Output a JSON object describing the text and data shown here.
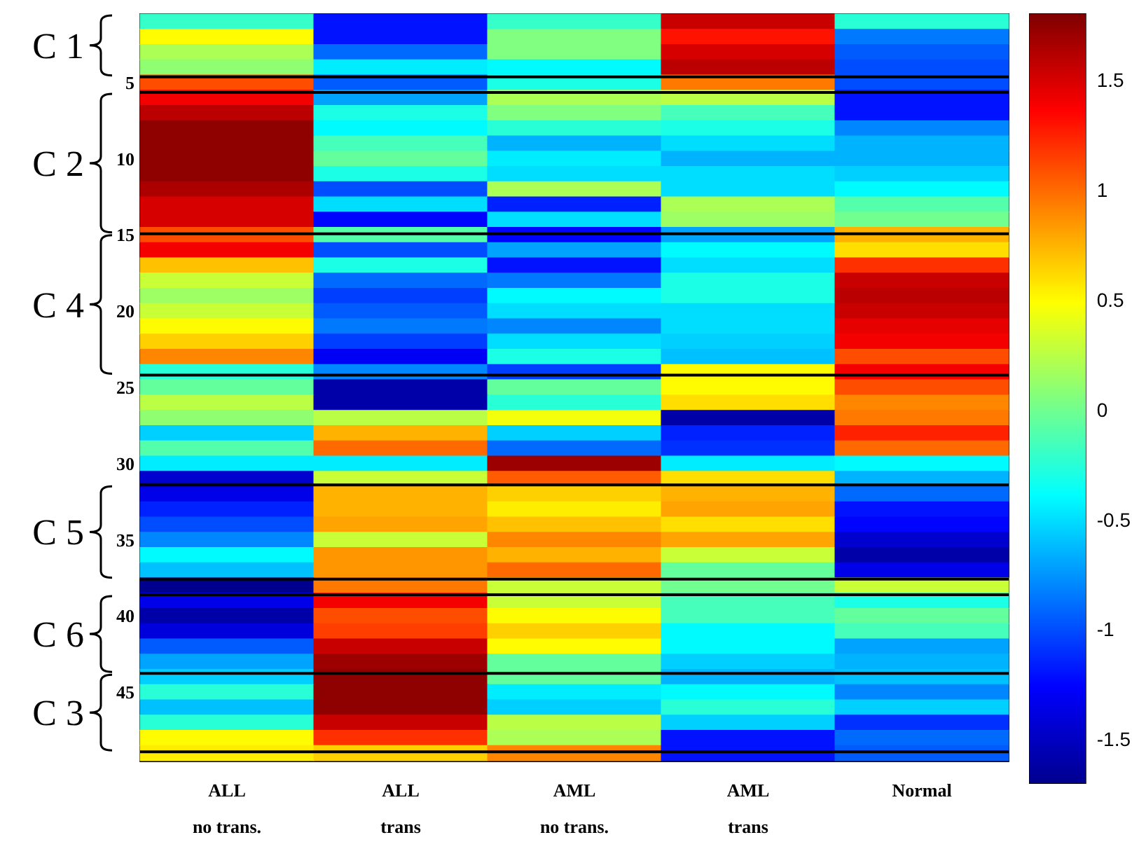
{
  "chart_data": {
    "type": "heatmap",
    "categories": [
      "ALL\nno trans.",
      "ALL\ntrans",
      "AML\nno trans.",
      "AML\ntrans",
      "Normal"
    ],
    "y_categories": [
      null,
      null,
      null,
      null,
      "5",
      null,
      null,
      null,
      null,
      "10",
      null,
      null,
      null,
      null,
      "15",
      null,
      null,
      null,
      null,
      "20",
      null,
      null,
      null,
      null,
      "25",
      null,
      null,
      null,
      null,
      "30",
      null,
      null,
      null,
      null,
      "35",
      null,
      null,
      null,
      null,
      "40",
      null,
      null,
      null,
      null,
      "45",
      null,
      null,
      null,
      null
    ],
    "cells": [
      [
        -0.2,
        -1.2,
        -0.2,
        1.55,
        -0.25
      ],
      [
        0.5,
        -1.2,
        0.05,
        1.3,
        -0.85
      ],
      [
        0.2,
        -0.9,
        0.05,
        1.5,
        -0.95
      ],
      [
        0.1,
        -0.45,
        -0.4,
        1.6,
        -1.0
      ],
      [
        1.1,
        -0.95,
        -0.3,
        0.95,
        -1.0
      ],
      [
        1.4,
        -0.7,
        0.2,
        0.25,
        -1.2
      ],
      [
        1.6,
        -0.3,
        0.05,
        -0.15,
        -1.2
      ],
      [
        1.75,
        -0.4,
        -0.25,
        -0.3,
        -0.8
      ],
      [
        1.75,
        -0.15,
        -0.65,
        -0.5,
        -0.65
      ],
      [
        1.75,
        -0.05,
        -0.45,
        -0.65,
        -0.65
      ],
      [
        1.75,
        -0.3,
        -0.5,
        -0.5,
        -0.55
      ],
      [
        1.65,
        -1.0,
        0.2,
        -0.5,
        -0.4
      ],
      [
        1.5,
        -0.5,
        -1.15,
        0.2,
        -0.1
      ],
      [
        1.5,
        -1.25,
        -0.5,
        0.15,
        0.0
      ],
      [
        1.1,
        -0.1,
        -1.25,
        -0.7,
        0.75
      ],
      [
        1.4,
        -1.0,
        -0.7,
        -0.4,
        0.6
      ],
      [
        0.7,
        -0.3,
        -1.2,
        -0.5,
        1.2
      ],
      [
        0.3,
        -0.9,
        -0.85,
        -0.3,
        1.55
      ],
      [
        0.15,
        -1.05,
        -0.4,
        -0.3,
        1.6
      ],
      [
        0.3,
        -0.95,
        -0.5,
        -0.5,
        1.55
      ],
      [
        0.5,
        -0.85,
        -0.8,
        -0.5,
        1.45
      ],
      [
        0.65,
        -1.05,
        -0.5,
        -0.55,
        1.4
      ],
      [
        0.9,
        -1.3,
        -0.3,
        -0.6,
        1.1
      ],
      [
        -0.25,
        -0.8,
        -1.05,
        0.5,
        1.4
      ],
      [
        -0.05,
        -1.6,
        -0.05,
        0.5,
        1.1
      ],
      [
        0.25,
        -1.6,
        -0.25,
        0.6,
        0.9
      ],
      [
        0.1,
        0.25,
        0.45,
        -1.6,
        0.95
      ],
      [
        -0.55,
        0.75,
        -0.55,
        -1.15,
        1.25
      ],
      [
        -0.1,
        1.0,
        -0.9,
        -1.1,
        1.0
      ],
      [
        -0.45,
        -0.45,
        1.7,
        -0.45,
        -0.4
      ],
      [
        -1.45,
        0.3,
        1.05,
        0.6,
        -0.65
      ],
      [
        -1.35,
        0.75,
        0.65,
        0.75,
        -0.9
      ],
      [
        -1.15,
        0.75,
        0.55,
        0.8,
        -1.2
      ],
      [
        -1.0,
        0.8,
        0.7,
        0.6,
        -1.25
      ],
      [
        -0.8,
        0.3,
        0.9,
        0.8,
        -1.45
      ],
      [
        -0.4,
        0.85,
        0.75,
        0.3,
        -1.6
      ],
      [
        -0.6,
        0.85,
        1.0,
        -0.05,
        -1.35
      ],
      [
        -1.7,
        0.95,
        0.3,
        0.0,
        0.3
      ],
      [
        -1.35,
        1.4,
        0.3,
        -0.15,
        -0.3
      ],
      [
        -1.6,
        1.1,
        0.5,
        -0.15,
        -0.05
      ],
      [
        -1.4,
        1.15,
        0.65,
        -0.4,
        -0.15
      ],
      [
        -0.95,
        1.55,
        0.5,
        -0.4,
        -0.7
      ],
      [
        -0.7,
        1.7,
        -0.05,
        -0.55,
        -0.65
      ],
      [
        -0.55,
        1.75,
        -0.05,
        -0.65,
        -0.6
      ],
      [
        -0.25,
        1.75,
        -0.45,
        -0.4,
        -0.8
      ],
      [
        -0.6,
        1.75,
        -0.55,
        -0.25,
        -0.55
      ],
      [
        -0.25,
        1.55,
        0.25,
        -0.55,
        -1.1
      ],
      [
        0.5,
        1.2,
        0.2,
        -1.2,
        -0.9
      ],
      [
        0.55,
        0.65,
        0.9,
        -1.2,
        -0.95
      ]
    ],
    "clim": [
      -1.7,
      1.8
    ],
    "cticks": [
      -1.5,
      -1,
      -0.5,
      0,
      0.5,
      1,
      1.5
    ],
    "annotations": [
      "C 1",
      "C 2",
      "C 4",
      "C 5",
      "C 6",
      "C 3"
    ]
  }
}
